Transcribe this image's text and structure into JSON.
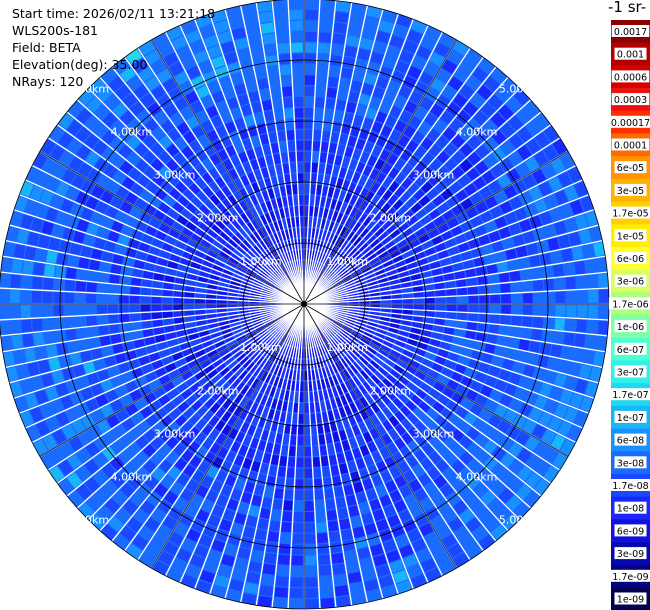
{
  "info": {
    "start_time": "Start time: 2026/02/11 13:21:18",
    "instrument": "WLS200s-181",
    "field": "Field: BETA",
    "elevation": "Elevation(deg): 35.00",
    "nrays": "NRays: 120"
  },
  "colorbar": {
    "title": "-1 sr-",
    "labels": [
      "0.0017",
      "0.001",
      "0.0006",
      "0.0003",
      "0.00017",
      "0.0001",
      "6e-05",
      "3e-05",
      "1.7e-05",
      "1e-05",
      "6e-06",
      "3e-06",
      "1.7e-06",
      "1e-06",
      "6e-07",
      "3e-07",
      "1.7e-07",
      "1e-07",
      "6e-08",
      "3e-08",
      "1.7e-08",
      "1e-08",
      "6e-09",
      "3e-09",
      "1.7e-09",
      "1e-09"
    ],
    "colors": [
      "#8b0000",
      "#b00000",
      "#d40000",
      "#f01010",
      "#ff3000",
      "#ff6a00",
      "#ff9500",
      "#ffb300",
      "#ffd000",
      "#ffee00",
      "#ffff30",
      "#d8ff60",
      "#a8ff80",
      "#80ffa8",
      "#50ffd0",
      "#30f0e8",
      "#20d8f0",
      "#18b8f8",
      "#1890ff",
      "#1a6cff",
      "#1a48ff",
      "#1a28ff",
      "#1010e0",
      "#0808b0",
      "#040480",
      "#020250"
    ]
  },
  "chart_data": {
    "type": "heatmap",
    "projection": "polar PPI (top-down)",
    "field": "BETA",
    "n_rays": 120,
    "max_range_km": 5.0,
    "range_ring_labels": [
      "1.00km",
      "2.00km",
      "3.00km",
      "4.00km",
      "5.00km"
    ],
    "spoke_angles_deg": [
      0,
      30,
      60,
      90,
      120,
      150,
      180,
      210,
      240,
      270,
      300,
      330
    ],
    "value_range": [
      1e-09,
      0.0017
    ],
    "dominant_value_near": "1e-08 to 3e-08",
    "dominant_value_far": "1e-07 to 3e-07"
  }
}
